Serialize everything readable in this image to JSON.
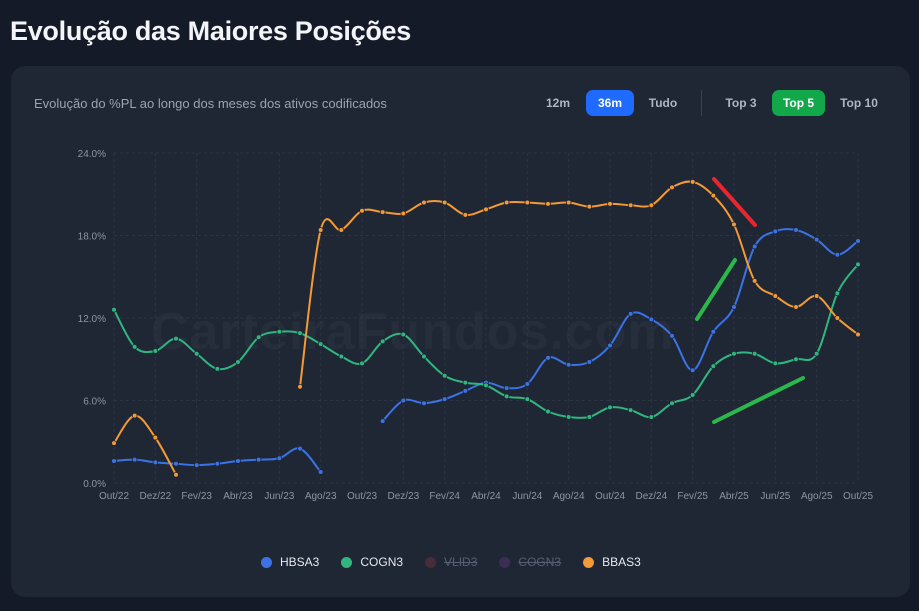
{
  "page": {
    "title": "Evolução das Maiores Posições"
  },
  "card": {
    "subtitle": "Evolução do %PL ao longo dos meses dos ativos codificados",
    "watermark": "CarteiraFundos.com"
  },
  "period_buttons": [
    {
      "label": "12m",
      "active": false
    },
    {
      "label": "36m",
      "active": true
    },
    {
      "label": "Tudo",
      "active": false
    }
  ],
  "top_buttons": [
    {
      "label": "Top 3",
      "active": false
    },
    {
      "label": "Top 5",
      "active": true
    },
    {
      "label": "Top 10",
      "active": false
    }
  ],
  "colors": {
    "HBSA3": "#3b73e6",
    "COGN3": "#2fb77f",
    "VLID3": "#4a2b3a",
    "COGN3_hidden": "#3a2f52",
    "BBAS3": "#f39a35",
    "annotation_red": "#e8262f",
    "annotation_green": "#2bb84a"
  },
  "chart_data": {
    "type": "line",
    "ylim": [
      0,
      24
    ],
    "y_ticks": [
      "0.0%",
      "6.0%",
      "12.0%",
      "18.0%",
      "24.0%"
    ],
    "x_tick_labels": [
      "Out/22",
      "Dez/22",
      "Fev/23",
      "Abr/23",
      "Jun/23",
      "Ago/23",
      "Out/23",
      "Dez/23",
      "Fev/24",
      "Abr/24",
      "Jun/24",
      "Ago/24",
      "Out/24",
      "Dez/24",
      "Fev/25",
      "Abr/25",
      "Jun/25",
      "Ago/25",
      "Out/25"
    ],
    "months": [
      "Out/22",
      "Nov/22",
      "Dez/22",
      "Jan/23",
      "Fev/23",
      "Mar/23",
      "Abr/23",
      "Mai/23",
      "Jun/23",
      "Jul/23",
      "Ago/23",
      "Set/23",
      "Out/23",
      "Nov/23",
      "Dez/23",
      "Jan/24",
      "Fev/24",
      "Mar/24",
      "Abr/24",
      "Mai/24",
      "Jun/24",
      "Jul/24",
      "Ago/24",
      "Set/24",
      "Out/24",
      "Nov/24",
      "Dez/24",
      "Jan/25",
      "Fev/25",
      "Mar/25",
      "Abr/25",
      "Mai/25",
      "Jun/25",
      "Jul/25",
      "Ago/25",
      "Set/25",
      "Out/25"
    ],
    "series": [
      {
        "name": "HBSA3",
        "visible": true,
        "values": [
          1.6,
          1.7,
          1.5,
          1.4,
          1.3,
          1.4,
          1.6,
          1.7,
          1.8,
          2.5,
          0.8,
          null,
          null,
          4.5,
          6.0,
          5.8,
          6.1,
          6.7,
          7.3,
          6.9,
          7.2,
          9.1,
          8.6,
          8.8,
          10.0,
          12.3,
          11.9,
          10.7,
          8.2,
          11.0,
          12.8,
          17.2,
          18.3,
          18.4,
          17.7,
          16.6,
          17.6
        ]
      },
      {
        "name": "COGN3",
        "visible": true,
        "values": [
          12.6,
          9.9,
          9.6,
          10.5,
          9.4,
          8.3,
          8.8,
          10.6,
          11.0,
          10.9,
          10.1,
          9.2,
          8.7,
          10.3,
          10.8,
          9.2,
          7.8,
          7.3,
          7.1,
          6.3,
          6.1,
          5.2,
          4.8,
          4.8,
          5.5,
          5.3,
          4.8,
          5.8,
          6.4,
          8.5,
          9.4,
          9.4,
          8.7,
          9.0,
          9.4,
          13.8,
          15.9
        ]
      },
      {
        "name": "VLID3",
        "visible": false,
        "values": []
      },
      {
        "name": "COGN3",
        "visible": false,
        "values": []
      },
      {
        "name": "BBAS3",
        "visible": true,
        "values": [
          2.9,
          4.9,
          3.3,
          0.6,
          null,
          null,
          null,
          null,
          null,
          7.0,
          18.4,
          18.4,
          19.8,
          19.7,
          19.6,
          20.4,
          20.4,
          19.5,
          19.9,
          20.4,
          20.4,
          20.3,
          20.4,
          20.1,
          20.3,
          20.2,
          20.2,
          21.5,
          21.9,
          20.9,
          18.8,
          14.7,
          13.6,
          12.8,
          13.6,
          12.0,
          10.8
        ]
      }
    ],
    "grid": true,
    "legend": {
      "position": "bottom-center",
      "entries": [
        "HBSA3",
        "COGN3",
        "VLID3",
        "COGN3",
        "BBAS3"
      ]
    }
  }
}
